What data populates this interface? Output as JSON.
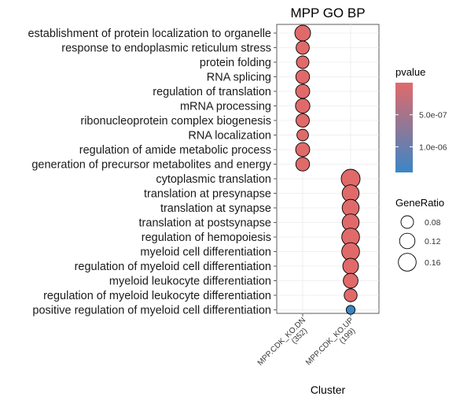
{
  "chart_data": {
    "type": "scatter",
    "title": "MPP GO BP",
    "xlabel": "Cluster",
    "ylabel": "",
    "clusters": [
      {
        "name": "MPP.CDK_KO.DN",
        "count": "(352)"
      },
      {
        "name": "MPP.CDK_KO.UP",
        "count": "(199)"
      }
    ],
    "terms": [
      "establishment of protein localization to organelle",
      "response to endoplasmic reticulum stress",
      "protein folding",
      "RNA splicing",
      "regulation of translation",
      "mRNA processing",
      "ribonucleoprotein complex biogenesis",
      "RNA localization",
      "regulation of amide metabolic process",
      "generation of precursor metabolites and energy",
      "cytoplasmic translation",
      "translation at presynapse",
      "translation at synapse",
      "translation at postsynapse",
      "regulation of hemopoiesis",
      "myeloid cell differentiation",
      "regulation of myeloid cell differentiation",
      "myeloid leukocyte differentiation",
      "regulation of myeloid leukocyte differentiation",
      "positive regulation of myeloid cell differentiation"
    ],
    "points": [
      {
        "term": "establishment of protein localization to organelle",
        "cluster": "MPP.CDK_KO.DN",
        "gene_ratio": 0.125,
        "pvalue": 0.0
      },
      {
        "term": "response to endoplasmic reticulum stress",
        "cluster": "MPP.CDK_KO.DN",
        "gene_ratio": 0.088,
        "pvalue": 0.0
      },
      {
        "term": "protein folding",
        "cluster": "MPP.CDK_KO.DN",
        "gene_ratio": 0.08,
        "pvalue": 0.0
      },
      {
        "term": "RNA splicing",
        "cluster": "MPP.CDK_KO.DN",
        "gene_ratio": 0.095,
        "pvalue": 0.0
      },
      {
        "term": "regulation of translation",
        "cluster": "MPP.CDK_KO.DN",
        "gene_ratio": 0.1,
        "pvalue": 0.0
      },
      {
        "term": "mRNA processing",
        "cluster": "MPP.CDK_KO.DN",
        "gene_ratio": 0.105,
        "pvalue": 0.0
      },
      {
        "term": "ribonucleoprotein complex biogenesis",
        "cluster": "MPP.CDK_KO.DN",
        "gene_ratio": 0.09,
        "pvalue": 0.0
      },
      {
        "term": "RNA localization",
        "cluster": "MPP.CDK_KO.DN",
        "gene_ratio": 0.068,
        "pvalue": 0.0
      },
      {
        "term": "regulation of amide metabolic process",
        "cluster": "MPP.CDK_KO.DN",
        "gene_ratio": 0.1,
        "pvalue": 0.0
      },
      {
        "term": "generation of precursor metabolites and energy",
        "cluster": "MPP.CDK_KO.DN",
        "gene_ratio": 0.095,
        "pvalue": 0.0
      },
      {
        "term": "cytoplasmic translation",
        "cluster": "MPP.CDK_KO.UP",
        "gene_ratio": 0.18,
        "pvalue": 0.0
      },
      {
        "term": "translation at presynapse",
        "cluster": "MPP.CDK_KO.UP",
        "gene_ratio": 0.145,
        "pvalue": 0.0
      },
      {
        "term": "translation at synapse",
        "cluster": "MPP.CDK_KO.UP",
        "gene_ratio": 0.145,
        "pvalue": 0.0
      },
      {
        "term": "translation at postsynapse",
        "cluster": "MPP.CDK_KO.UP",
        "gene_ratio": 0.145,
        "pvalue": 0.0
      },
      {
        "term": "regulation of hemopoiesis",
        "cluster": "MPP.CDK_KO.UP",
        "gene_ratio": 0.16,
        "pvalue": 0.0
      },
      {
        "term": "myeloid cell differentiation",
        "cluster": "MPP.CDK_KO.UP",
        "gene_ratio": 0.16,
        "pvalue": 0.0
      },
      {
        "term": "regulation of myeloid cell differentiation",
        "cluster": "MPP.CDK_KO.UP",
        "gene_ratio": 0.125,
        "pvalue": 0.0
      },
      {
        "term": "myeloid leukocyte differentiation",
        "cluster": "MPP.CDK_KO.UP",
        "gene_ratio": 0.11,
        "pvalue": 0.0
      },
      {
        "term": "regulation of myeloid leukocyte differentiation",
        "cluster": "MPP.CDK_KO.UP",
        "gene_ratio": 0.085,
        "pvalue": 0.0
      },
      {
        "term": "positive regulation of myeloid cell differentiation",
        "cluster": "MPP.CDK_KO.UP",
        "gene_ratio": 0.04,
        "pvalue": 1.4e-06
      }
    ],
    "color_legend": {
      "title": "pvalue",
      "low_color": "#e06a6a",
      "high_color": "#3b86c6",
      "min": 0.0,
      "max": 1.4e-06,
      "ticks": [
        {
          "label": "5.0e-07",
          "value": 5e-07
        },
        {
          "label": "1.0e-06",
          "value": 1e-06
        }
      ]
    },
    "size_legend": {
      "title": "GeneRatio",
      "ticks": [
        {
          "label": "0.08",
          "value": 0.08
        },
        {
          "label": "0.12",
          "value": 0.12
        },
        {
          "label": "0.16",
          "value": 0.16
        }
      ],
      "min": 0.0,
      "max": 0.18
    },
    "grid": true,
    "legend_position": "right"
  }
}
